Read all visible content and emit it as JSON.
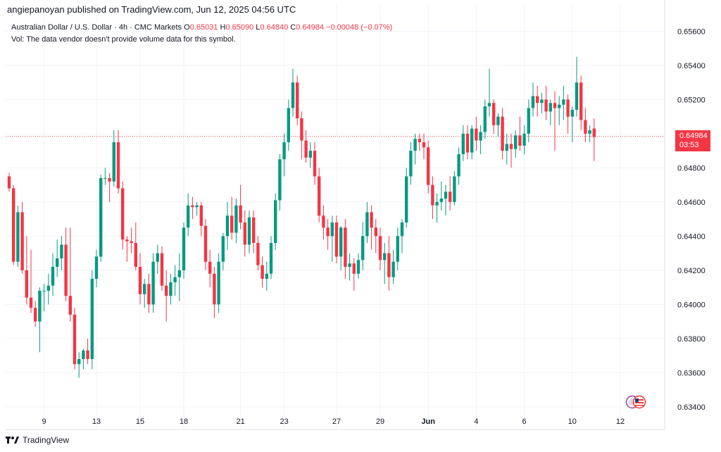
{
  "header": {
    "published": "angiepanoyan published on TradingView.com, Jun 12, 2025 04:56 UTC"
  },
  "legend": {
    "symbol": "Australian Dollar / U.S. Dollar · 4h · CMC Markets",
    "open_label": "O",
    "open": "0.65031",
    "high_label": "H",
    "high": "0.65090",
    "low_label": "L",
    "low": "0.64840",
    "close_label": "C",
    "close": "0.64984",
    "change": "−0.00048 (−0.07%)",
    "volume_note": "Vol: The data vendor doesn't provide volume data for this symbol."
  },
  "badge": {
    "price": "0.64984",
    "countdown": "03:53"
  },
  "footer": {
    "brand": "TradingView"
  },
  "colors": {
    "up": "#089981",
    "down": "#f23645",
    "grid": "#f0f3fa",
    "text": "#131722"
  },
  "icons": {
    "logo": "tradingview-logo-icon",
    "flag": "country-flags-icon"
  },
  "chart_data": {
    "type": "candlestick",
    "y_ticks": [
      "0.65600",
      "0.65400",
      "0.65200",
      "0.65000",
      "0.64800",
      "0.64600",
      "0.64400",
      "0.64200",
      "0.64000",
      "0.63800",
      "0.63600",
      "0.63400"
    ],
    "ylim": [
      0.6335,
      0.6568
    ],
    "x_labels": [
      {
        "label": "9",
        "index": 8
      },
      {
        "label": "13",
        "index": 20
      },
      {
        "label": "15",
        "index": 30
      },
      {
        "label": "18",
        "index": 40
      },
      {
        "label": "21",
        "index": 53
      },
      {
        "label": "23",
        "index": 63
      },
      {
        "label": "27",
        "index": 75
      },
      {
        "label": "29",
        "index": 85
      },
      {
        "label": "Jun",
        "index": 96
      },
      {
        "label": "4",
        "index": 107
      },
      {
        "label": "6",
        "index": 118
      },
      {
        "label": "10",
        "index": 129
      },
      {
        "label": "12",
        "index": 140
      }
    ],
    "last_price": 0.64984,
    "candles": [
      [
        0.6475,
        0.6477,
        0.6466,
        0.6468
      ],
      [
        0.6468,
        0.647,
        0.6423,
        0.6425
      ],
      [
        0.6425,
        0.6458,
        0.6422,
        0.6454
      ],
      [
        0.6454,
        0.646,
        0.6418,
        0.642
      ],
      [
        0.642,
        0.644,
        0.64,
        0.6404
      ],
      [
        0.6404,
        0.6432,
        0.6395,
        0.6398
      ],
      [
        0.6398,
        0.6402,
        0.6387,
        0.639
      ],
      [
        0.639,
        0.641,
        0.6372,
        0.6408
      ],
      [
        0.6408,
        0.6412,
        0.6396,
        0.6408
      ],
      [
        0.6408,
        0.6418,
        0.64,
        0.6411
      ],
      [
        0.6411,
        0.643,
        0.6405,
        0.6422
      ],
      [
        0.6422,
        0.6438,
        0.6416,
        0.6427
      ],
      [
        0.6427,
        0.644,
        0.642,
        0.6435
      ],
      [
        0.6435,
        0.6445,
        0.6402,
        0.6405
      ],
      [
        0.6405,
        0.6445,
        0.639,
        0.6394
      ],
      [
        0.6394,
        0.6398,
        0.6362,
        0.6365
      ],
      [
        0.6365,
        0.6372,
        0.6357,
        0.6368
      ],
      [
        0.6368,
        0.6374,
        0.6362,
        0.6373
      ],
      [
        0.6373,
        0.638,
        0.6365,
        0.6368
      ],
      [
        0.6368,
        0.642,
        0.6362,
        0.6415
      ],
      [
        0.6415,
        0.6432,
        0.641,
        0.6428
      ],
      [
        0.6428,
        0.6476,
        0.6425,
        0.6474
      ],
      [
        0.6474,
        0.648,
        0.647,
        0.6474
      ],
      [
        0.6474,
        0.6477,
        0.646,
        0.6472
      ],
      [
        0.6472,
        0.6502,
        0.6469,
        0.6495
      ],
      [
        0.6495,
        0.6502,
        0.6465,
        0.6468
      ],
      [
        0.6468,
        0.6472,
        0.6432,
        0.6438
      ],
      [
        0.6438,
        0.644,
        0.6425,
        0.6437
      ],
      [
        0.6437,
        0.6445,
        0.643,
        0.6436
      ],
      [
        0.6436,
        0.6448,
        0.642,
        0.6422
      ],
      [
        0.6422,
        0.643,
        0.64,
        0.6406
      ],
      [
        0.6406,
        0.6415,
        0.6398,
        0.6412
      ],
      [
        0.6412,
        0.6418,
        0.6395,
        0.64
      ],
      [
        0.64,
        0.643,
        0.6395,
        0.6425
      ],
      [
        0.6425,
        0.6435,
        0.6418,
        0.643
      ],
      [
        0.643,
        0.6434,
        0.6408,
        0.6411
      ],
      [
        0.6411,
        0.642,
        0.639,
        0.6405
      ],
      [
        0.6405,
        0.6418,
        0.64,
        0.6413
      ],
      [
        0.6413,
        0.6423,
        0.6405,
        0.6416
      ],
      [
        0.6416,
        0.643,
        0.6402,
        0.642
      ],
      [
        0.642,
        0.6448,
        0.6415,
        0.6445
      ],
      [
        0.6445,
        0.6465,
        0.644,
        0.6458
      ],
      [
        0.6458,
        0.6463,
        0.645,
        0.6457
      ],
      [
        0.6457,
        0.646,
        0.6452,
        0.6458
      ],
      [
        0.6458,
        0.646,
        0.644,
        0.6446
      ],
      [
        0.6446,
        0.645,
        0.642,
        0.6425
      ],
      [
        0.6425,
        0.6432,
        0.641,
        0.6418
      ],
      [
        0.6418,
        0.6422,
        0.6392,
        0.64
      ],
      [
        0.64,
        0.643,
        0.6395,
        0.6425
      ],
      [
        0.6425,
        0.6442,
        0.642,
        0.644
      ],
      [
        0.644,
        0.646,
        0.6432,
        0.6452
      ],
      [
        0.6452,
        0.6463,
        0.6438,
        0.6442
      ],
      [
        0.6442,
        0.6462,
        0.6436,
        0.6458
      ],
      [
        0.6458,
        0.647,
        0.6444,
        0.6448
      ],
      [
        0.6448,
        0.6455,
        0.6428,
        0.6435
      ],
      [
        0.6435,
        0.6455,
        0.643,
        0.6451
      ],
      [
        0.6451,
        0.6455,
        0.643,
        0.6436
      ],
      [
        0.6436,
        0.644,
        0.642,
        0.6423
      ],
      [
        0.6423,
        0.6428,
        0.641,
        0.6415
      ],
      [
        0.6415,
        0.6425,
        0.6408,
        0.6418
      ],
      [
        0.6418,
        0.644,
        0.6415,
        0.6436
      ],
      [
        0.6436,
        0.6465,
        0.6432,
        0.6461
      ],
      [
        0.6461,
        0.6488,
        0.6455,
        0.6485
      ],
      [
        0.6485,
        0.65,
        0.6475,
        0.6495
      ],
      [
        0.6495,
        0.652,
        0.649,
        0.6515
      ],
      [
        0.6515,
        0.6538,
        0.651,
        0.653
      ],
      [
        0.653,
        0.6534,
        0.6505,
        0.6509
      ],
      [
        0.6509,
        0.6513,
        0.6485,
        0.6496
      ],
      [
        0.6496,
        0.6502,
        0.6483,
        0.6486
      ],
      [
        0.6486,
        0.6495,
        0.648,
        0.649
      ],
      [
        0.649,
        0.6495,
        0.647,
        0.6475
      ],
      [
        0.6475,
        0.648,
        0.6448,
        0.6452
      ],
      [
        0.6452,
        0.6458,
        0.6438,
        0.6445
      ],
      [
        0.6445,
        0.645,
        0.6432,
        0.644
      ],
      [
        0.644,
        0.6452,
        0.6425,
        0.6448
      ],
      [
        0.6448,
        0.6452,
        0.6424,
        0.6428
      ],
      [
        0.6428,
        0.6446,
        0.642,
        0.6445
      ],
      [
        0.6445,
        0.645,
        0.6415,
        0.6422
      ],
      [
        0.6422,
        0.643,
        0.6414,
        0.6424
      ],
      [
        0.6424,
        0.6427,
        0.6408,
        0.6418
      ],
      [
        0.6418,
        0.643,
        0.6415,
        0.6426
      ],
      [
        0.6426,
        0.6448,
        0.642,
        0.644
      ],
      [
        0.644,
        0.646,
        0.6436,
        0.6454
      ],
      [
        0.6454,
        0.6458,
        0.6432,
        0.6445
      ],
      [
        0.6445,
        0.645,
        0.643,
        0.644
      ],
      [
        0.644,
        0.6445,
        0.642,
        0.6426
      ],
      [
        0.6426,
        0.6436,
        0.6412,
        0.643
      ],
      [
        0.643,
        0.644,
        0.6408,
        0.6416
      ],
      [
        0.6416,
        0.6432,
        0.6412,
        0.6425
      ],
      [
        0.6425,
        0.6445,
        0.642,
        0.644
      ],
      [
        0.644,
        0.645,
        0.643,
        0.6448
      ],
      [
        0.6448,
        0.648,
        0.6445,
        0.6475
      ],
      [
        0.6475,
        0.6495,
        0.647,
        0.649
      ],
      [
        0.649,
        0.65,
        0.6482,
        0.6497
      ],
      [
        0.6497,
        0.65,
        0.649,
        0.6495
      ],
      [
        0.6495,
        0.65,
        0.6485,
        0.6492
      ],
      [
        0.6492,
        0.6496,
        0.6465,
        0.647
      ],
      [
        0.647,
        0.6475,
        0.645,
        0.6458
      ],
      [
        0.6458,
        0.6465,
        0.6448,
        0.646
      ],
      [
        0.646,
        0.6472,
        0.6455,
        0.6462
      ],
      [
        0.6462,
        0.647,
        0.6452,
        0.6466
      ],
      [
        0.6466,
        0.6475,
        0.6455,
        0.646
      ],
      [
        0.646,
        0.6478,
        0.6458,
        0.6475
      ],
      [
        0.6475,
        0.6492,
        0.647,
        0.6488
      ],
      [
        0.6488,
        0.6505,
        0.6484,
        0.65
      ],
      [
        0.65,
        0.6505,
        0.6485,
        0.6489
      ],
      [
        0.6489,
        0.6505,
        0.6485,
        0.6503
      ],
      [
        0.6503,
        0.651,
        0.649,
        0.6496
      ],
      [
        0.6496,
        0.6505,
        0.6488,
        0.6501
      ],
      [
        0.6501,
        0.652,
        0.6497,
        0.6516
      ],
      [
        0.6516,
        0.6538,
        0.651,
        0.6518
      ],
      [
        0.6518,
        0.652,
        0.65,
        0.6505
      ],
      [
        0.6505,
        0.6512,
        0.6498,
        0.651
      ],
      [
        0.651,
        0.6515,
        0.6485,
        0.649
      ],
      [
        0.649,
        0.65,
        0.6482,
        0.6494
      ],
      [
        0.6494,
        0.65,
        0.648,
        0.6491
      ],
      [
        0.6491,
        0.6502,
        0.6486,
        0.6499
      ],
      [
        0.6499,
        0.651,
        0.649,
        0.6493
      ],
      [
        0.6493,
        0.6505,
        0.6488,
        0.65
      ],
      [
        0.65,
        0.652,
        0.6495,
        0.6515
      ],
      [
        0.6515,
        0.653,
        0.651,
        0.6522
      ],
      [
        0.6522,
        0.6528,
        0.651,
        0.6518
      ],
      [
        0.6518,
        0.6524,
        0.6512,
        0.652
      ],
      [
        0.652,
        0.6528,
        0.6508,
        0.6513
      ],
      [
        0.6513,
        0.652,
        0.6505,
        0.6518
      ],
      [
        0.6518,
        0.6525,
        0.649,
        0.6515
      ],
      [
        0.6515,
        0.6522,
        0.6505,
        0.6517
      ],
      [
        0.6517,
        0.6528,
        0.6508,
        0.652
      ],
      [
        0.652,
        0.6523,
        0.65,
        0.651
      ],
      [
        0.651,
        0.6516,
        0.6495,
        0.6514
      ],
      [
        0.6514,
        0.6545,
        0.651,
        0.653
      ],
      [
        0.653,
        0.6534,
        0.6502,
        0.6508
      ],
      [
        0.6508,
        0.6515,
        0.6495,
        0.65
      ],
      [
        0.65,
        0.6505,
        0.6495,
        0.6502
      ],
      [
        0.6503,
        0.6509,
        0.6484,
        0.6498
      ]
    ]
  }
}
